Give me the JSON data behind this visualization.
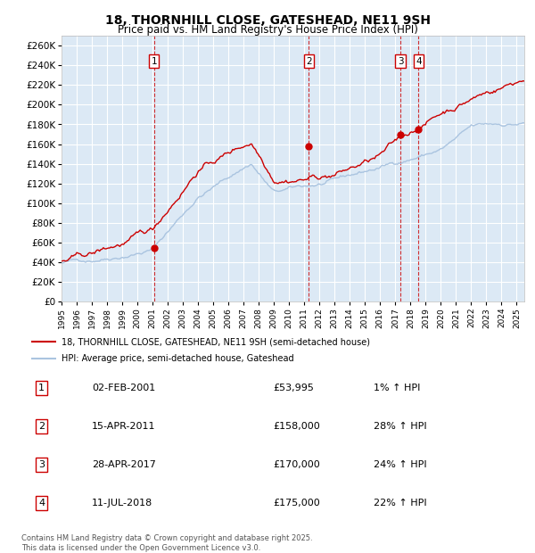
{
  "title": "18, THORNHILL CLOSE, GATESHEAD, NE11 9SH",
  "subtitle": "Price paid vs. HM Land Registry's House Price Index (HPI)",
  "title_fontsize": 10,
  "subtitle_fontsize": 8.5,
  "background_color": "#ffffff",
  "plot_bg_color": "#dce9f5",
  "grid_color": "#ffffff",
  "ylim": [
    0,
    270000
  ],
  "yticks": [
    0,
    20000,
    40000,
    60000,
    80000,
    100000,
    120000,
    140000,
    160000,
    180000,
    200000,
    220000,
    240000,
    260000
  ],
  "ytick_labels": [
    "£0",
    "£20K",
    "£40K",
    "£60K",
    "£80K",
    "£100K",
    "£120K",
    "£140K",
    "£160K",
    "£180K",
    "£200K",
    "£220K",
    "£240K",
    "£260K"
  ],
  "hpi_color": "#aac4e0",
  "price_color": "#cc0000",
  "sale_marker_color": "#cc0000",
  "vline_color": "#cc0000",
  "purchase_dates": [
    2001.09,
    2011.29,
    2017.33,
    2018.53
  ],
  "purchase_prices": [
    53995,
    158000,
    170000,
    175000
  ],
  "purchase_labels": [
    "1",
    "2",
    "3",
    "4"
  ],
  "legend_label_price": "18, THORNHILL CLOSE, GATESHEAD, NE11 9SH (semi-detached house)",
  "legend_label_hpi": "HPI: Average price, semi-detached house, Gateshead",
  "table_data": [
    [
      "1",
      "02-FEB-2001",
      "£53,995",
      "1% ↑ HPI"
    ],
    [
      "2",
      "15-APR-2011",
      "£158,000",
      "28% ↑ HPI"
    ],
    [
      "3",
      "28-APR-2017",
      "£170,000",
      "24% ↑ HPI"
    ],
    [
      "4",
      "11-JUL-2018",
      "£175,000",
      "22% ↑ HPI"
    ]
  ],
  "footer_text": "Contains HM Land Registry data © Crown copyright and database right 2025.\nThis data is licensed under the Open Government Licence v3.0.",
  "xmin": 1995.0,
  "xmax": 2025.5,
  "xtick_years": [
    1995,
    1996,
    1997,
    1998,
    1999,
    2000,
    2001,
    2002,
    2003,
    2004,
    2005,
    2006,
    2007,
    2008,
    2009,
    2010,
    2011,
    2012,
    2013,
    2014,
    2015,
    2016,
    2017,
    2018,
    2019,
    2020,
    2021,
    2022,
    2023,
    2024,
    2025
  ]
}
